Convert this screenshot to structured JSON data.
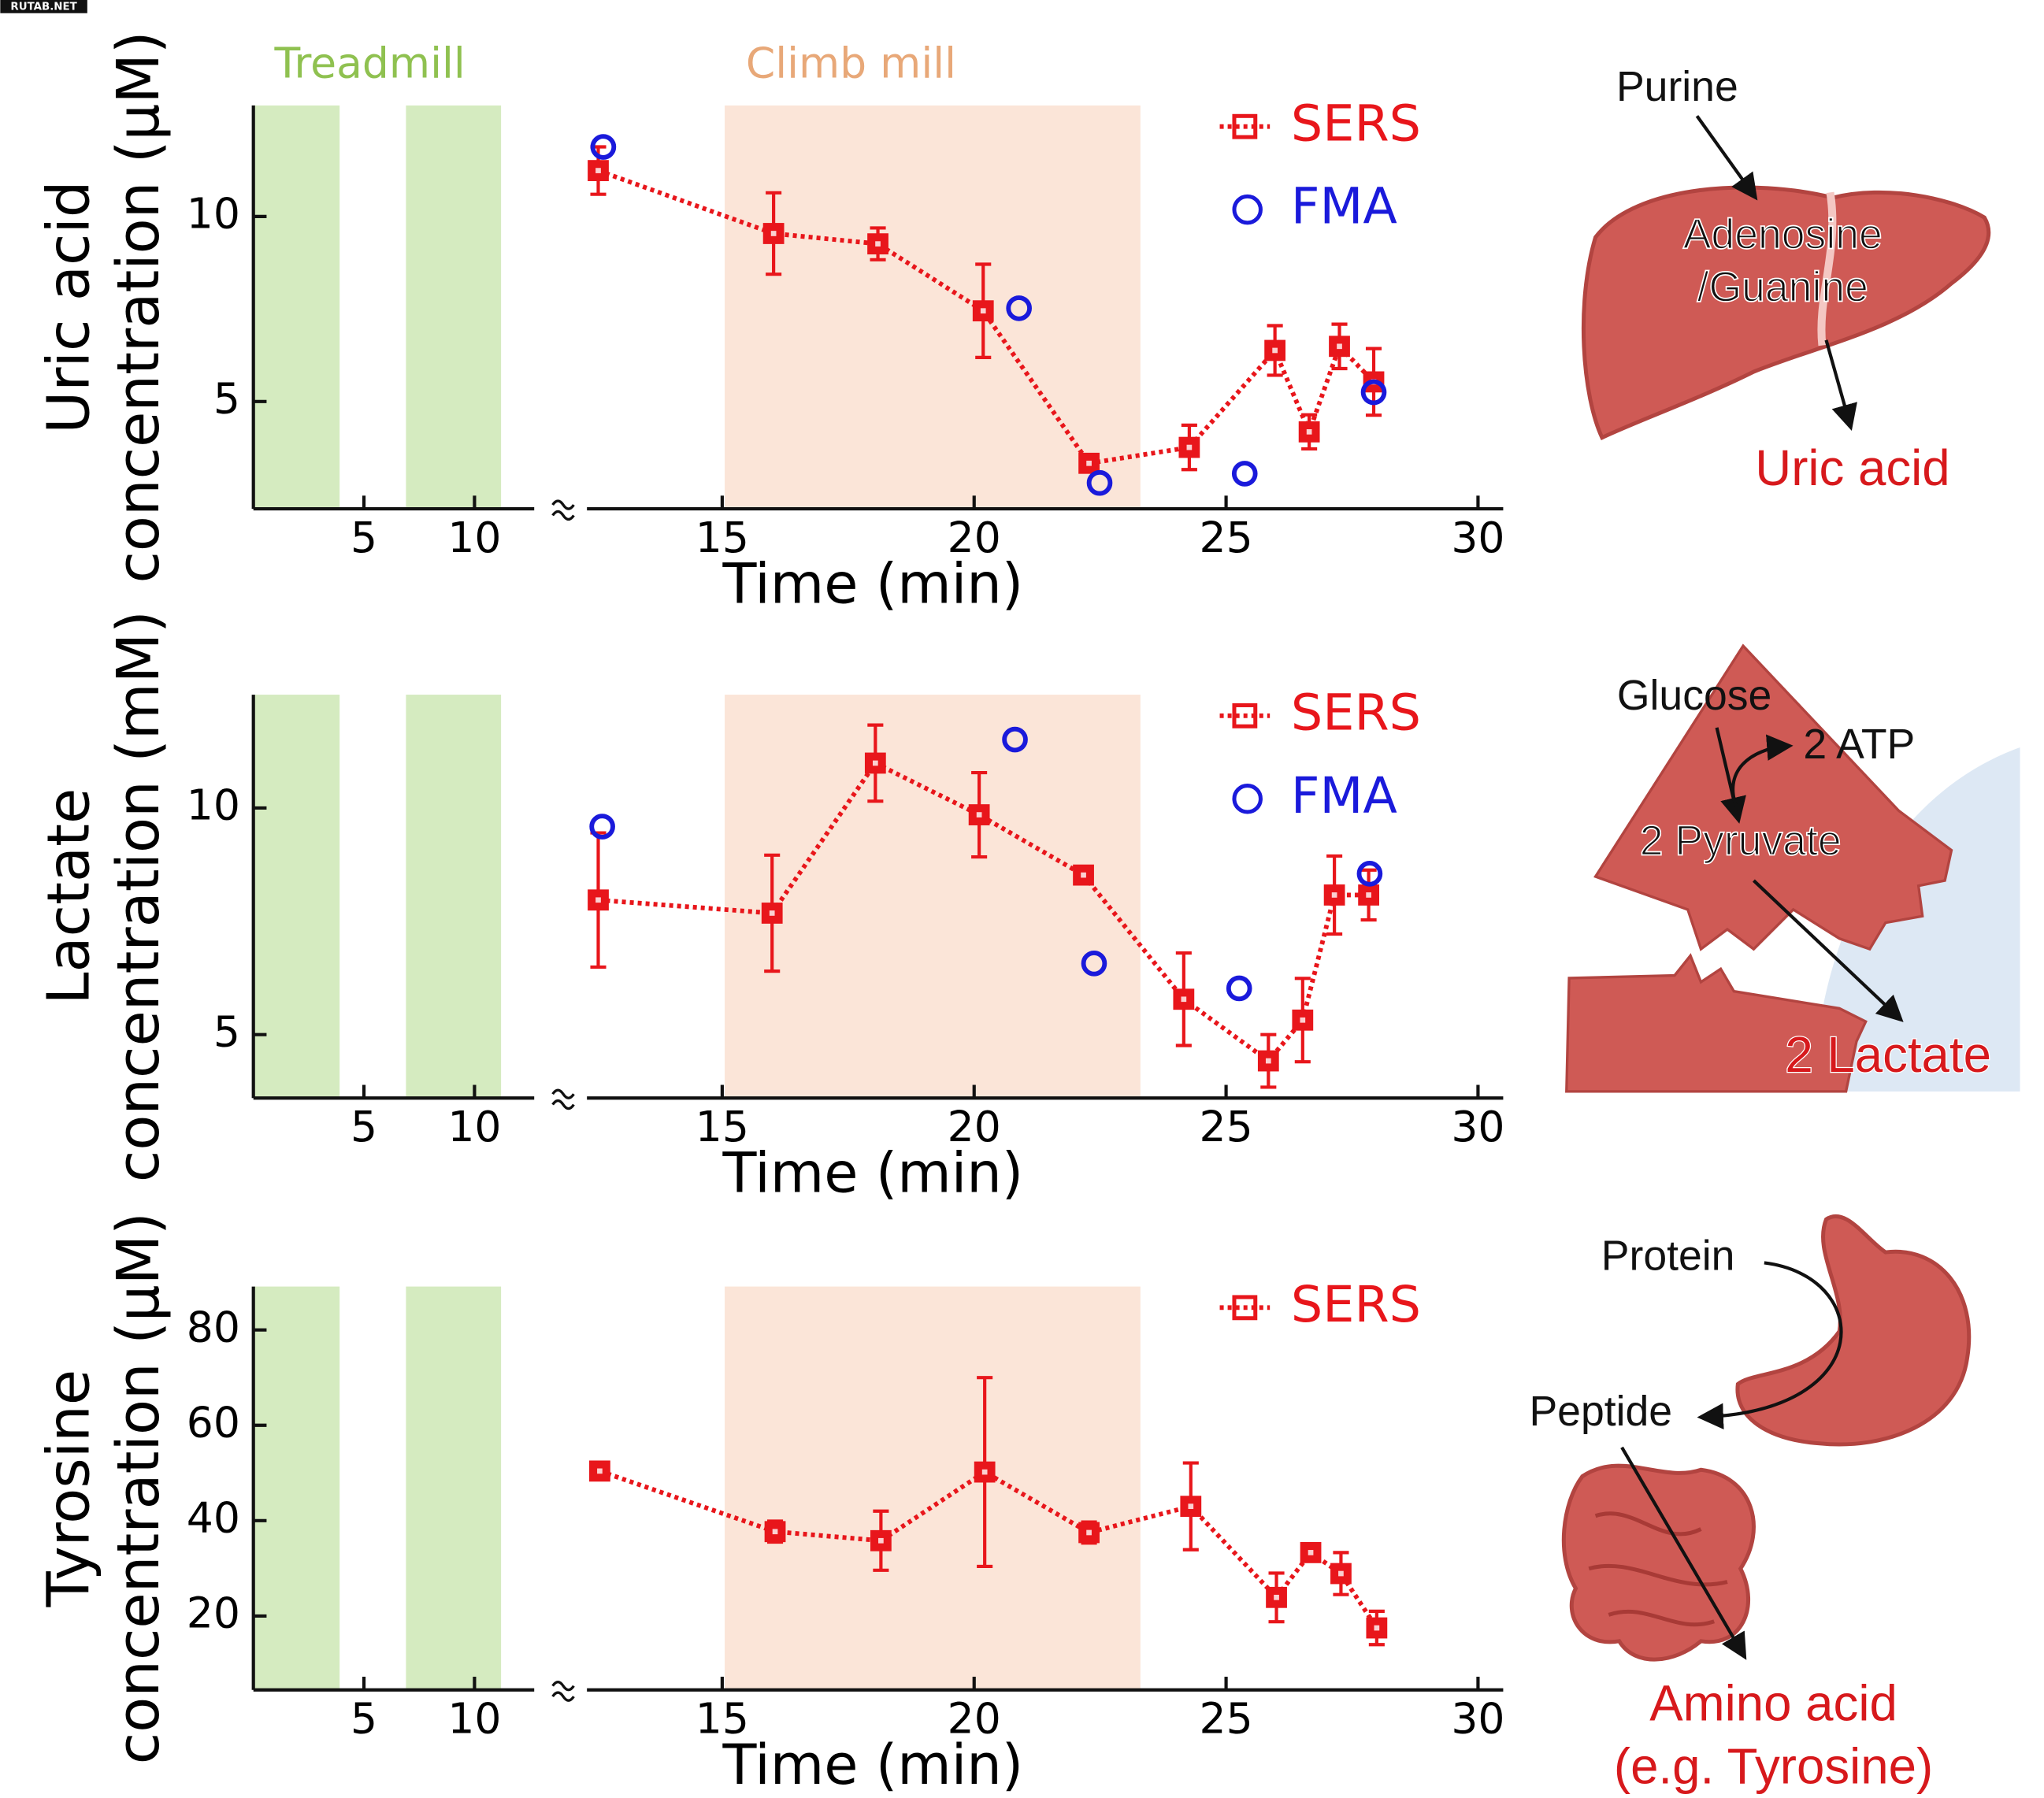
{
  "chart_data": [
    {
      "type": "line",
      "ylabel": [
        "Uric acid",
        "concentration (μM)"
      ],
      "xlabel": "Time (min)",
      "legend": "upper right",
      "ylim": [
        2.1,
        13
      ],
      "yticks": [
        5,
        10
      ],
      "x_segments": [
        {
          "xlim": [
            0,
            12.7
          ],
          "xticks": [
            5,
            10
          ],
          "spans": [
            {
              "xlim": [
                0,
                3.9
              ],
              "color": "#d5ebc0",
              "label": "Treadmill",
              "label_color": "#8fc150"
            },
            {
              "xlim": [
                6.9,
                11.2
              ],
              "color": "#d5ebc0"
            }
          ]
        },
        {
          "xlim": [
            11.4,
            30.5
          ],
          "xticks": [
            15,
            20,
            25,
            30
          ],
          "spans": [
            {
              "xlim": [
                15.05,
                23.3
              ],
              "color": "#fbe5d8",
              "label": "Climb mill",
              "label_color": "#e8a878"
            }
          ]
        }
      ],
      "series": [
        {
          "name": "SERS",
          "color": "#e8161b",
          "marker": "square",
          "x": [
            12.54,
            16.02,
            18.09,
            20.18,
            22.28,
            24.27,
            25.97,
            26.65,
            27.25,
            27.93
          ],
          "values": [
            11.24,
            9.54,
            9.26,
            7.45,
            3.33,
            3.76,
            6.38,
            4.18,
            6.49,
            5.53
          ],
          "errors": [
            0.64,
            1.1,
            0.43,
            1.26,
            null,
            0.6,
            0.67,
            0.46,
            0.6,
            0.9
          ]
        },
        {
          "name": "FMA",
          "color": "#1a1adb",
          "marker": "circle",
          "x": [
            12.64,
            20.89,
            22.49,
            25.37,
            27.93
          ],
          "values": [
            11.88,
            7.52,
            2.8,
            3.05,
            5.25
          ]
        }
      ]
    },
    {
      "type": "line",
      "ylabel": [
        "Lactate",
        "concentration (mM)"
      ],
      "xlabel": "Time (min)",
      "legend": "upper right",
      "ylim": [
        3.6,
        12.5
      ],
      "yticks": [
        5,
        10
      ],
      "x_segments": [
        {
          "xlim": [
            0,
            12.7
          ],
          "xticks": [
            5,
            10
          ],
          "spans": [
            {
              "xlim": [
                0,
                3.9
              ],
              "color": "#d5ebc0"
            },
            {
              "xlim": [
                6.9,
                11.2
              ],
              "color": "#d5ebc0"
            }
          ]
        },
        {
          "xlim": [
            11.4,
            30.5
          ],
          "xticks": [
            15,
            20,
            25,
            30
          ],
          "spans": [
            {
              "xlim": [
                15.05,
                23.3
              ],
              "color": "#fbe5d8"
            }
          ]
        }
      ],
      "series": [
        {
          "name": "SERS",
          "color": "#e8161b",
          "marker": "square",
          "x": [
            12.54,
            15.99,
            18.04,
            20.1,
            22.17,
            24.16,
            25.84,
            26.52,
            27.15,
            27.83
          ],
          "values": [
            7.97,
            7.68,
            10.99,
            9.85,
            8.52,
            5.78,
            4.42,
            5.32,
            8.08,
            8.08
          ],
          "errors": [
            1.48,
            1.28,
            0.84,
            0.93,
            null,
            1.02,
            0.58,
            0.92,
            0.86,
            0.55
          ]
        },
        {
          "name": "FMA",
          "color": "#1a1adb",
          "marker": "circle",
          "x": [
            12.62,
            20.81,
            22.38,
            25.26,
            27.85
          ],
          "values": [
            9.59,
            11.51,
            6.57,
            6.02,
            8.55
          ]
        }
      ]
    },
    {
      "type": "line",
      "ylabel": [
        "Tyrosine",
        "concentration (μM)"
      ],
      "xlabel": "Time (min)",
      "legend": "upper right",
      "ylim": [
        4.5,
        89.1
      ],
      "yticks": [
        20,
        40,
        60,
        80
      ],
      "x_segments": [
        {
          "xlim": [
            0,
            12.7
          ],
          "xticks": [
            5,
            10
          ],
          "spans": [
            {
              "xlim": [
                0,
                3.9
              ],
              "color": "#d5ebc0"
            },
            {
              "xlim": [
                6.9,
                11.2
              ],
              "color": "#d5ebc0"
            }
          ]
        },
        {
          "xlim": [
            11.4,
            30.5
          ],
          "xticks": [
            15,
            20,
            25,
            30
          ],
          "spans": [
            {
              "xlim": [
                15.05,
                23.3
              ],
              "color": "#fbe5d8"
            }
          ]
        }
      ],
      "series": [
        {
          "name": "SERS",
          "color": "#e8161b",
          "marker": "square",
          "x": [
            12.57,
            16.05,
            18.15,
            20.21,
            22.28,
            24.3,
            26.0,
            26.68,
            27.28,
            27.99
          ],
          "values": [
            50.4,
            37.7,
            35.8,
            50.2,
            37.5,
            43,
            23.9,
            33.3,
            28.9,
            17.5
          ],
          "errors": [
            null,
            2.2,
            6.2,
            19.8,
            2.2,
            9.1,
            5.1,
            null,
            4.4,
            3.5
          ]
        }
      ]
    }
  ],
  "diagrams": {
    "watermark": "RUTAB.NET",
    "liver": {
      "input": "Purine",
      "intermediate": [
        "Adenosine",
        "/Guanine"
      ],
      "output": "Uric acid"
    },
    "muscle": {
      "input": "Glucose",
      "byproduct": "2 ATP",
      "intermediate": "2 Pyruvate",
      "output": "2 Lactate"
    },
    "gut": {
      "input": "Protein",
      "intermediate": "Peptide",
      "output": [
        "Amino acid",
        "(e.g. Tyrosine)"
      ]
    }
  }
}
